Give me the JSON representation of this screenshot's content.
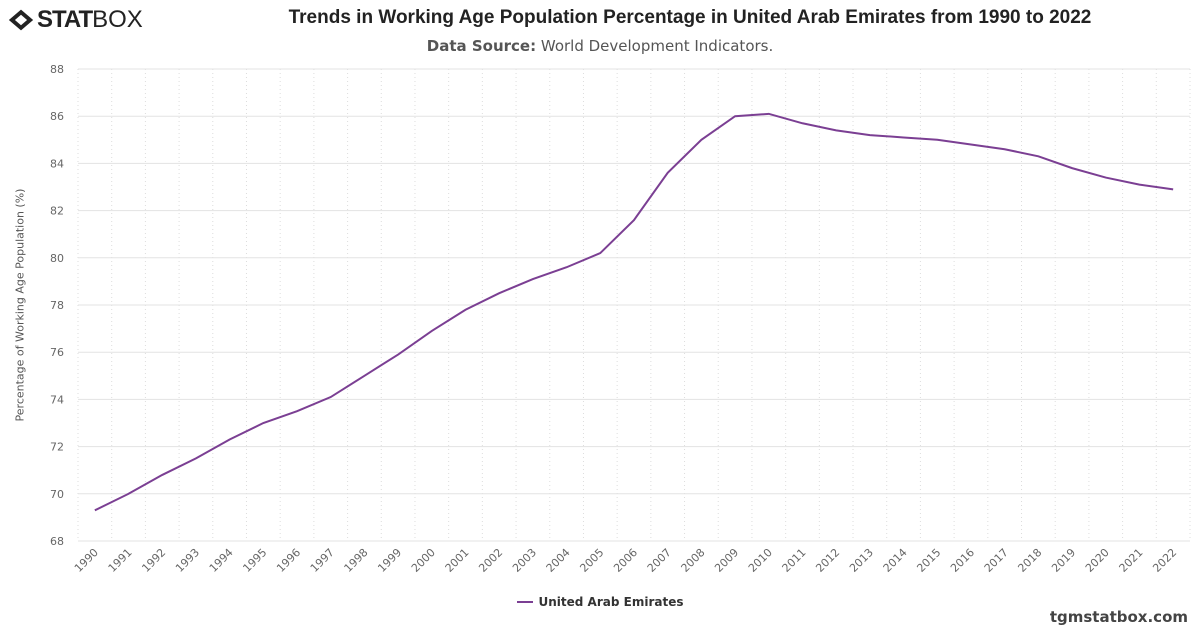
{
  "logo": {
    "text_bold": "STAT",
    "text_light": "BOX"
  },
  "chart_data": {
    "type": "line",
    "title": "Trends in Working Age Population Percentage in United Arab Emirates from 1990 to 2022",
    "subtitle_label": "Data Source:",
    "subtitle_value": "World Development Indicators.",
    "xlabel": "",
    "ylabel": "Percentage of Working Age Population (%)",
    "ylim": [
      68,
      88
    ],
    "yticks": [
      68,
      70,
      72,
      74,
      76,
      78,
      80,
      82,
      84,
      86,
      88
    ],
    "grid": true,
    "legend": "bottom-center",
    "categories": [
      "1990",
      "1991",
      "1992",
      "1993",
      "1994",
      "1995",
      "1996",
      "1997",
      "1998",
      "1999",
      "2000",
      "2001",
      "2002",
      "2003",
      "2004",
      "2005",
      "2006",
      "2007",
      "2008",
      "2009",
      "2010",
      "2011",
      "2012",
      "2013",
      "2014",
      "2015",
      "2016",
      "2017",
      "2018",
      "2019",
      "2020",
      "2021",
      "2022"
    ],
    "series": [
      {
        "name": "United Arab Emirates",
        "color": "#7b3f93",
        "values": [
          69.3,
          70.0,
          70.8,
          71.5,
          72.3,
          73.0,
          73.5,
          74.1,
          75.0,
          75.9,
          76.9,
          77.8,
          78.5,
          79.1,
          79.6,
          80.2,
          81.6,
          83.6,
          85.0,
          86.0,
          86.1,
          85.7,
          85.4,
          85.2,
          85.1,
          85.0,
          84.8,
          84.6,
          84.3,
          83.8,
          83.4,
          83.1,
          82.9
        ]
      }
    ]
  },
  "credit": "tgmstatbox.com"
}
